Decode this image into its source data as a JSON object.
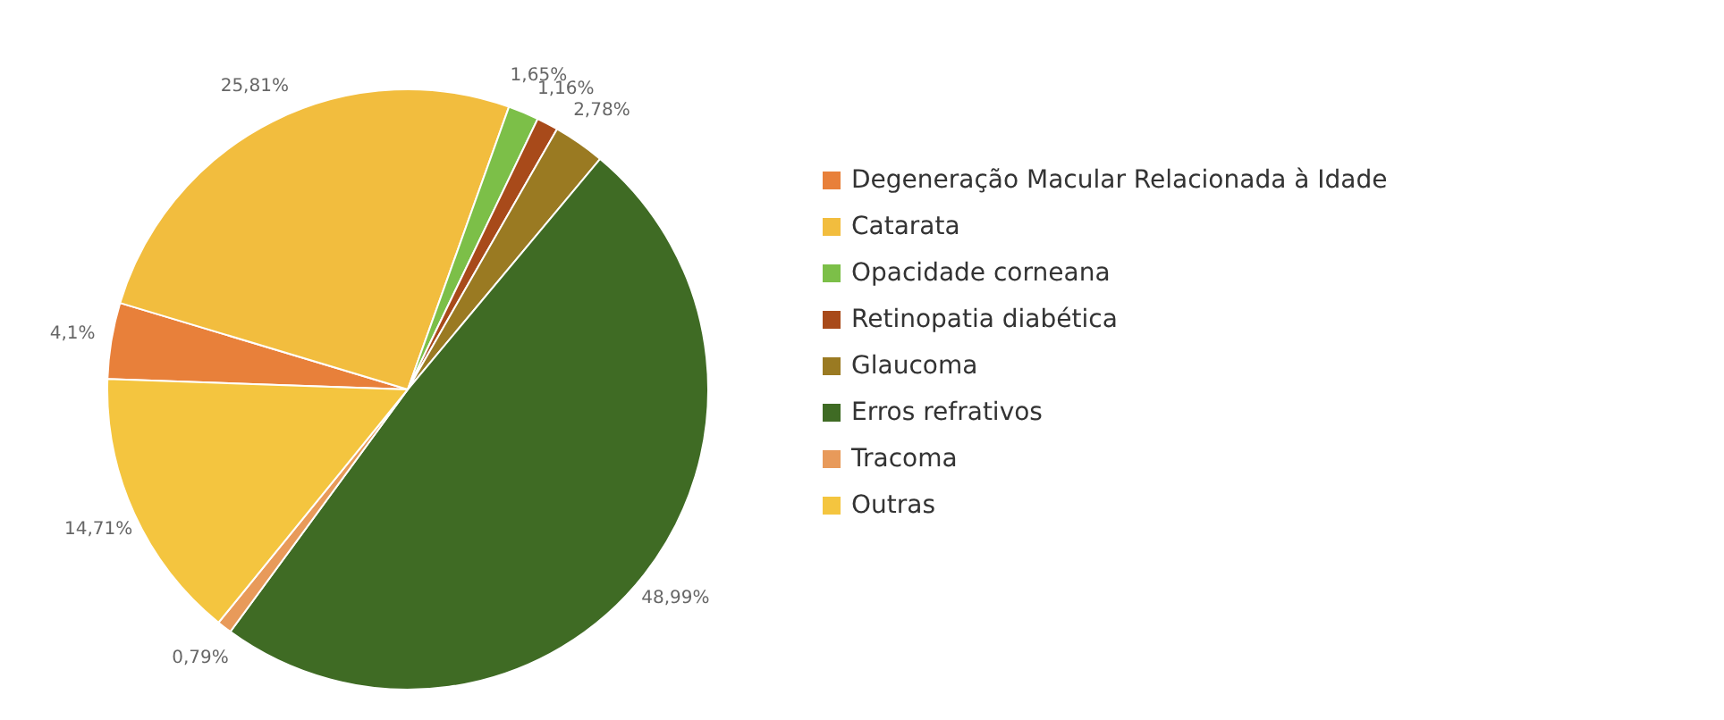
{
  "chart_data": {
    "type": "pie",
    "categories": [
      "Degeneração Macular Relacionada à Idade",
      "Catarata",
      "Opacidade corneana",
      "Retinopatia diabética",
      "Glaucoma",
      "Erros refrativos",
      "Tracoma",
      "Outras"
    ],
    "values": [
      4.1,
      25.81,
      1.65,
      1.16,
      2.78,
      48.99,
      0.79,
      14.71
    ],
    "colors": [
      "#e8803a",
      "#f2bd3e",
      "#7cbf48",
      "#a84a1a",
      "#9a7a22",
      "#3f6b24",
      "#e89a5a",
      "#f4c53f"
    ],
    "value_labels": [
      "4,1%",
      "25,81%",
      "1,65%",
      "1,16%",
      "2,78%",
      "48,99%",
      "0,79%",
      "14,71%"
    ],
    "legend": "right"
  }
}
